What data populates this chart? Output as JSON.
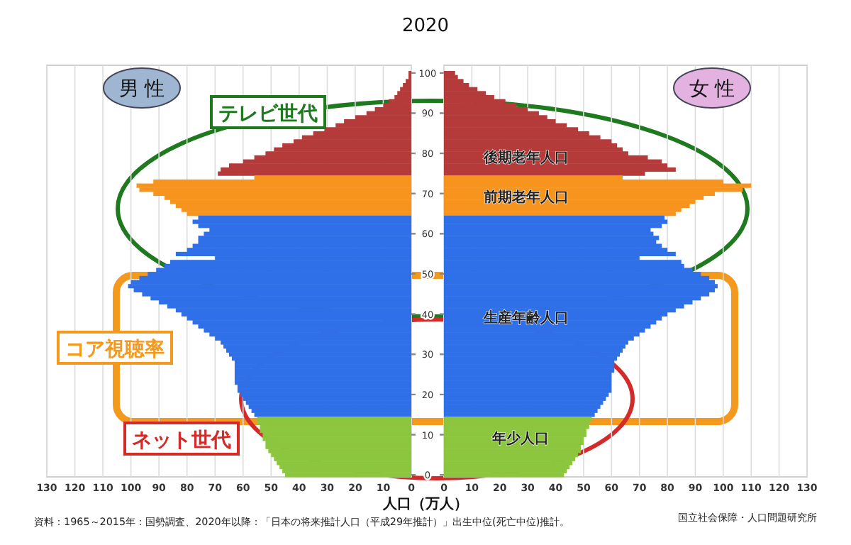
{
  "chart_data": [
    {
      "type": "bar",
      "orientation": "horizontal",
      "title": "2020",
      "xlabel": "人口（万人）",
      "xlim": [
        130,
        0
      ],
      "xticks": [
        0,
        10,
        20,
        30,
        40,
        50,
        60,
        70,
        80,
        90,
        100,
        110,
        120,
        130
      ],
      "grid": "x",
      "categories": [
        "100",
        null,
        null,
        null,
        null,
        null,
        null,
        null,
        null,
        null,
        "90",
        null,
        null,
        null,
        null,
        null,
        null,
        null,
        null,
        null,
        "80",
        null,
        null,
        null,
        null,
        null,
        null,
        null,
        null,
        null,
        "70",
        null,
        null,
        null,
        null,
        null,
        null,
        null,
        null,
        null,
        "60",
        null,
        null,
        null,
        null,
        null,
        null,
        null,
        null,
        null,
        "50",
        null,
        null,
        null,
        null,
        null,
        null,
        null,
        null,
        null,
        "40",
        null,
        null,
        null,
        null,
        null,
        null,
        null,
        null,
        null,
        "30",
        null,
        null,
        null,
        null,
        null,
        null,
        null,
        null,
        null,
        "20",
        null,
        null,
        null,
        null,
        null,
        null,
        null,
        null,
        null,
        "10",
        null,
        null,
        null,
        null,
        null,
        null,
        null,
        null,
        null,
        "0"
      ],
      "values": [
        1,
        1,
        2,
        3,
        4,
        5,
        6,
        8,
        10,
        13,
        16,
        20,
        24,
        27,
        31,
        35,
        39,
        42,
        46,
        49,
        52,
        56,
        60,
        65,
        68,
        69,
        56,
        92,
        98,
        97,
        92,
        88,
        86,
        84,
        82,
        80,
        76,
        78,
        76,
        72,
        74,
        76,
        76,
        78,
        80,
        84,
        70,
        86,
        88,
        91,
        94,
        97,
        100,
        101,
        99,
        96,
        93,
        90,
        87,
        84,
        82,
        80,
        78,
        76,
        74,
        72,
        70,
        68,
        67,
        66,
        65,
        64,
        63,
        63,
        63,
        63,
        63,
        63,
        62,
        62,
        61,
        60,
        59,
        58,
        57,
        56,
        55,
        55,
        54,
        54,
        53,
        53,
        52,
        52,
        51,
        50,
        49,
        48,
        47,
        46,
        45
      ],
      "colors": [
        "#b53a3a",
        "#b53a3a",
        "#b53a3a",
        "#b53a3a",
        "#b53a3a",
        "#b53a3a",
        "#b53a3a",
        "#b53a3a",
        "#b53a3a",
        "#b53a3a",
        "#b53a3a",
        "#b53a3a",
        "#b53a3a",
        "#b53a3a",
        "#b53a3a",
        "#b53a3a",
        "#b53a3a",
        "#b53a3a",
        "#b53a3a",
        "#b53a3a",
        "#b53a3a",
        "#b53a3a",
        "#b53a3a",
        "#b53a3a",
        "#b53a3a",
        "#b53a3a",
        "#f7941d",
        "#f7941d",
        "#f7941d",
        "#f7941d",
        "#f7941d",
        "#f7941d",
        "#f7941d",
        "#f7941d",
        "#f7941d",
        "#f7941d",
        "#2f6fe8",
        "#2f6fe8",
        "#2f6fe8",
        "#2f6fe8",
        "#2f6fe8",
        "#2f6fe8",
        "#2f6fe8",
        "#2f6fe8",
        "#2f6fe8",
        "#2f6fe8",
        "#2f6fe8",
        "#2f6fe8",
        "#2f6fe8",
        "#2f6fe8",
        "#2f6fe8",
        "#2f6fe8",
        "#2f6fe8",
        "#2f6fe8",
        "#2f6fe8",
        "#2f6fe8",
        "#2f6fe8",
        "#2f6fe8",
        "#2f6fe8",
        "#2f6fe8",
        "#2f6fe8",
        "#2f6fe8",
        "#2f6fe8",
        "#2f6fe8",
        "#2f6fe8",
        "#2f6fe8",
        "#2f6fe8",
        "#2f6fe8",
        "#2f6fe8",
        "#2f6fe8",
        "#2f6fe8",
        "#2f6fe8",
        "#2f6fe8",
        "#2f6fe8",
        "#2f6fe8",
        "#2f6fe8",
        "#2f6fe8",
        "#2f6fe8",
        "#2f6fe8",
        "#2f6fe8",
        "#2f6fe8",
        "#2f6fe8",
        "#2f6fe8",
        "#2f6fe8",
        "#2f6fe8",
        "#2f6fe8",
        "#8cc63f",
        "#8cc63f",
        "#8cc63f",
        "#8cc63f",
        "#8cc63f",
        "#8cc63f",
        "#8cc63f",
        "#8cc63f",
        "#8cc63f",
        "#8cc63f",
        "#8cc63f",
        "#8cc63f",
        "#8cc63f",
        "#8cc63f",
        "#8cc63f"
      ],
      "annotations": [
        "男 性",
        "テレビ世代",
        "コア視聴率",
        "ネット世代",
        "資料：1965～2015年：国勢調査、2020年以降：「日本の将来推計人口（平成29年推計）」出生中位(死亡中位)推計。"
      ]
    },
    {
      "type": "bar",
      "orientation": "horizontal",
      "xlim": [
        0,
        130
      ],
      "xticks": [
        0,
        10,
        20,
        30,
        40,
        50,
        60,
        70,
        80,
        90,
        100,
        110,
        120,
        130
      ],
      "grid": "x",
      "tick_labels": "x",
      "categories": [
        "100",
        null,
        null,
        null,
        null,
        null,
        null,
        null,
        null,
        null,
        "90",
        null,
        null,
        null,
        null,
        null,
        null,
        null,
        null,
        null,
        "80",
        null,
        null,
        null,
        null,
        null,
        null,
        null,
        null,
        null,
        "70",
        null,
        null,
        null,
        null,
        null,
        null,
        null,
        null,
        null,
        "60",
        null,
        null,
        null,
        null,
        null,
        null,
        null,
        null,
        null,
        "50",
        null,
        null,
        null,
        null,
        null,
        null,
        null,
        null,
        null,
        "40",
        null,
        null,
        null,
        null,
        null,
        null,
        null,
        null,
        null,
        "30",
        null,
        null,
        null,
        null,
        null,
        null,
        null,
        null,
        null,
        "20",
        null,
        null,
        null,
        null,
        null,
        null,
        null,
        null,
        null,
        "10",
        null,
        null,
        null,
        null,
        null,
        null,
        null,
        null,
        null,
        "0"
      ],
      "values": [
        4,
        5,
        7,
        9,
        12,
        15,
        18,
        22,
        26,
        30,
        34,
        37,
        40,
        44,
        48,
        52,
        56,
        60,
        62,
        64,
        66,
        73,
        78,
        80,
        83,
        72,
        64,
        100,
        110,
        107,
        97,
        93,
        90,
        88,
        85,
        83,
        79,
        80,
        78,
        74,
        75,
        77,
        76,
        78,
        80,
        83,
        70,
        85,
        86,
        89,
        92,
        95,
        97,
        98,
        97,
        95,
        92,
        89,
        86,
        83,
        80,
        78,
        76,
        74,
        72,
        70,
        68,
        66,
        65,
        64,
        63,
        62,
        61,
        61,
        61,
        60,
        60,
        60,
        60,
        60,
        59,
        58,
        57,
        56,
        55,
        54,
        53,
        52,
        52,
        51,
        51,
        50,
        50,
        49,
        49,
        48,
        47,
        46,
        45,
        44,
        43
      ],
      "colors": [
        "#b53a3a",
        "#b53a3a",
        "#b53a3a",
        "#b53a3a",
        "#b53a3a",
        "#b53a3a",
        "#b53a3a",
        "#b53a3a",
        "#b53a3a",
        "#b53a3a",
        "#b53a3a",
        "#b53a3a",
        "#b53a3a",
        "#b53a3a",
        "#b53a3a",
        "#b53a3a",
        "#b53a3a",
        "#b53a3a",
        "#b53a3a",
        "#b53a3a",
        "#b53a3a",
        "#b53a3a",
        "#b53a3a",
        "#b53a3a",
        "#b53a3a",
        "#b53a3a",
        "#f7941d",
        "#f7941d",
        "#f7941d",
        "#f7941d",
        "#f7941d",
        "#f7941d",
        "#f7941d",
        "#f7941d",
        "#f7941d",
        "#f7941d",
        "#2f6fe8",
        "#2f6fe8",
        "#2f6fe8",
        "#2f6fe8",
        "#2f6fe8",
        "#2f6fe8",
        "#2f6fe8",
        "#2f6fe8",
        "#2f6fe8",
        "#2f6fe8",
        "#2f6fe8",
        "#2f6fe8",
        "#2f6fe8",
        "#2f6fe8",
        "#2f6fe8",
        "#2f6fe8",
        "#2f6fe8",
        "#2f6fe8",
        "#2f6fe8",
        "#2f6fe8",
        "#2f6fe8",
        "#2f6fe8",
        "#2f6fe8",
        "#2f6fe8",
        "#2f6fe8",
        "#2f6fe8",
        "#2f6fe8",
        "#2f6fe8",
        "#2f6fe8",
        "#2f6fe8",
        "#2f6fe8",
        "#2f6fe8",
        "#2f6fe8",
        "#2f6fe8",
        "#2f6fe8",
        "#2f6fe8",
        "#2f6fe8",
        "#2f6fe8",
        "#2f6fe8",
        "#2f6fe8",
        "#2f6fe8",
        "#2f6fe8",
        "#2f6fe8",
        "#2f6fe8",
        "#2f6fe8",
        "#2f6fe8",
        "#2f6fe8",
        "#2f6fe8",
        "#2f6fe8",
        "#2f6fe8",
        "#8cc63f",
        "#8cc63f",
        "#8cc63f",
        "#8cc63f",
        "#8cc63f",
        "#8cc63f",
        "#8cc63f",
        "#8cc63f",
        "#8cc63f",
        "#8cc63f",
        "#8cc63f",
        "#8cc63f",
        "#8cc63f",
        "#8cc63f",
        "#8cc63f"
      ],
      "annotations": [
        "女 性",
        "国立社会保障・人口問題研究所",
        "後期老年人口",
        "前期老年人口",
        "生産年齢人口",
        "年少人口"
      ]
    }
  ]
}
